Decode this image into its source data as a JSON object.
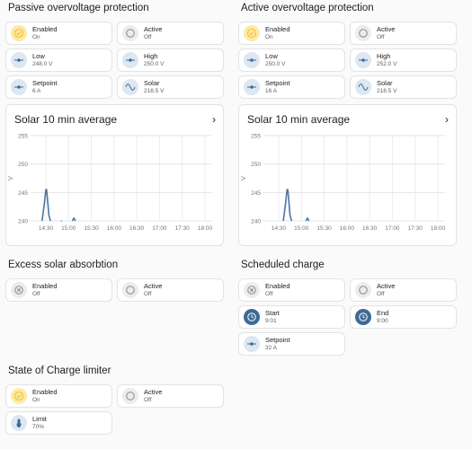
{
  "passive": {
    "title": "Passive overvoltage protection",
    "tiles": [
      {
        "name": "Enabled",
        "value": "On",
        "icon": "check-circle-icon",
        "style": "yellow"
      },
      {
        "name": "Active",
        "value": "Off",
        "icon": "circle-outline-icon",
        "style": "grey"
      },
      {
        "name": "Low",
        "value": "248.0 V",
        "icon": "slider-icon",
        "style": "blue"
      },
      {
        "name": "High",
        "value": "250.0 V",
        "icon": "slider-icon",
        "style": "blue"
      },
      {
        "name": "Setpoint",
        "value": "6 A",
        "icon": "slider-icon",
        "style": "blue"
      },
      {
        "name": "Solar",
        "value": "218.5 V",
        "icon": "sine-wave-icon",
        "style": "blue"
      }
    ],
    "chart": {
      "title": "Solar 10 min average"
    }
  },
  "active": {
    "title": "Active overvoltage protection",
    "tiles": [
      {
        "name": "Enabled",
        "value": "On",
        "icon": "check-circle-icon",
        "style": "yellow"
      },
      {
        "name": "Active",
        "value": "Off",
        "icon": "circle-outline-icon",
        "style": "grey"
      },
      {
        "name": "Low",
        "value": "250.0 V",
        "icon": "slider-icon",
        "style": "blue"
      },
      {
        "name": "High",
        "value": "252.0 V",
        "icon": "slider-icon",
        "style": "blue"
      },
      {
        "name": "Setpoint",
        "value": "16 A",
        "icon": "slider-icon",
        "style": "blue"
      },
      {
        "name": "Solar",
        "value": "218.5 V",
        "icon": "sine-wave-icon",
        "style": "blue"
      }
    ],
    "chart": {
      "title": "Solar 10 min average"
    }
  },
  "excess": {
    "title": "Excess solar absorbtion",
    "tiles": [
      {
        "name": "Enabled",
        "value": "Off",
        "icon": "cancel-circle-icon",
        "style": "grey"
      },
      {
        "name": "Active",
        "value": "Off",
        "icon": "circle-outline-icon",
        "style": "grey"
      }
    ]
  },
  "scheduled": {
    "title": "Scheduled charge",
    "tiles": [
      {
        "name": "Enabled",
        "value": "Off",
        "icon": "cancel-circle-icon",
        "style": "grey"
      },
      {
        "name": "Active",
        "value": "Off",
        "icon": "circle-outline-icon",
        "style": "grey"
      },
      {
        "name": "Start",
        "value": "9:01",
        "icon": "clock-icon",
        "style": "navy"
      },
      {
        "name": "End",
        "value": "9:00",
        "icon": "clock-icon",
        "style": "navy"
      },
      {
        "name": "Setpoint",
        "value": "32 A",
        "icon": "slider-icon",
        "style": "blue"
      }
    ]
  },
  "soc": {
    "title": "State of Charge limiter",
    "tiles": [
      {
        "name": "Enabled",
        "value": "On",
        "icon": "check-circle-icon",
        "style": "yellow"
      },
      {
        "name": "Active",
        "value": "Off",
        "icon": "circle-outline-icon",
        "style": "grey"
      },
      {
        "name": "Limit",
        "value": "70%",
        "icon": "battery-icon",
        "style": "blue"
      }
    ]
  },
  "chart_data": [
    {
      "type": "line",
      "title": "Solar 10 min average",
      "ylabel": "V",
      "yticks": [
        "255",
        "250",
        "245",
        "240"
      ],
      "ylim": [
        240,
        255
      ],
      "xticks": [
        "14:30",
        "15:00",
        "15:30",
        "16:00",
        "16:30",
        "17:00",
        "17:30",
        "18:00"
      ],
      "grid": true,
      "color": "#4a76a8",
      "series": [
        {
          "x": [
            "14:25",
            "14:28",
            "14:30",
            "14:31",
            "14:32",
            "14:34",
            "14:36"
          ],
          "values": [
            240,
            243,
            245.5,
            245.5,
            244,
            241,
            240
          ]
        },
        {
          "x": [
            "14:50",
            "14:51"
          ],
          "values": [
            240,
            240
          ]
        },
        {
          "x": [
            "15:05",
            "15:07",
            "15:09"
          ],
          "values": [
            240,
            240.5,
            240
          ]
        }
      ]
    },
    {
      "type": "line",
      "title": "Solar 10 min average",
      "ylabel": "V",
      "yticks": [
        "255",
        "250",
        "245",
        "240"
      ],
      "ylim": [
        240,
        255
      ],
      "xticks": [
        "14:30",
        "15:00",
        "15:30",
        "16:00",
        "16:30",
        "17:00",
        "17:30",
        "18:00"
      ],
      "grid": true,
      "color": "#4a76a8",
      "series": [
        {
          "x": [
            "14:36",
            "14:39",
            "14:41",
            "14:42",
            "14:43",
            "14:45",
            "14:47"
          ],
          "values": [
            240,
            243,
            245.5,
            245.5,
            244,
            241,
            240
          ]
        },
        {
          "x": [
            "15:06",
            "15:08",
            "15:10"
          ],
          "values": [
            240,
            240.5,
            240
          ]
        }
      ]
    }
  ]
}
